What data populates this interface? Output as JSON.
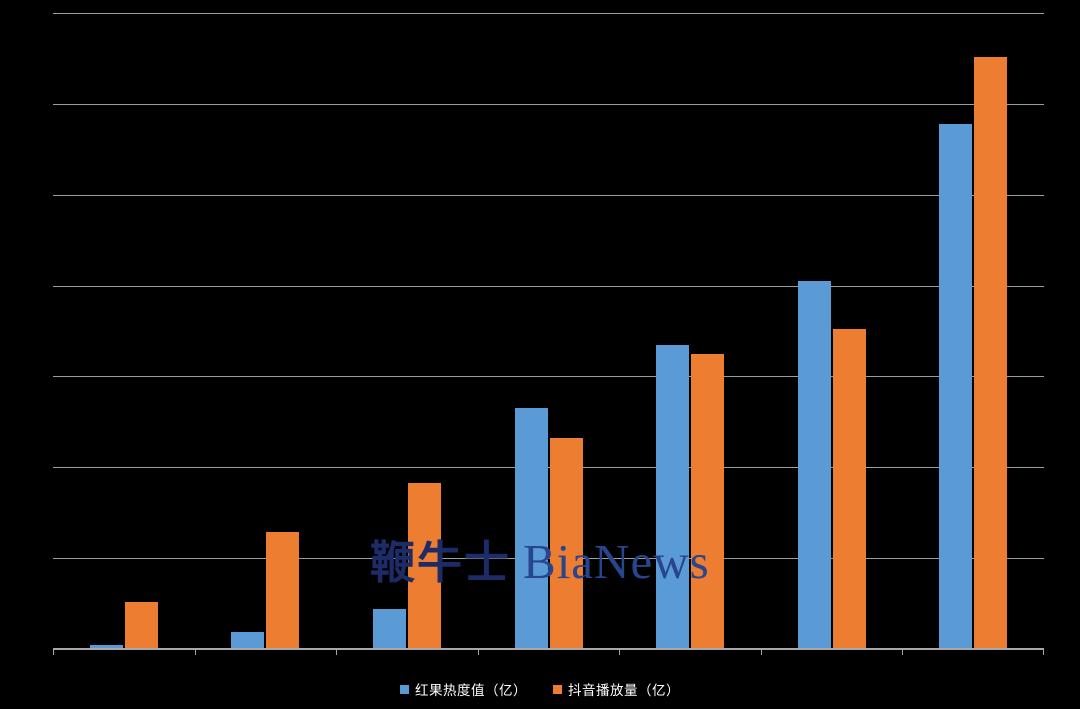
{
  "colors": {
    "background": "#000000",
    "series_blue": "#5B9BD5",
    "series_orange": "#ED7D31",
    "gridline": "#9d9d9d",
    "axis": "#a8a8a8",
    "watermark_cjk": "#1d2b67",
    "watermark_latin": "#28458e",
    "legend_text": "#ffffff"
  },
  "watermark": {
    "cjk": "鞭牛士",
    "latin": "BiaNews"
  },
  "legend": {
    "items": [
      {
        "id": "hongguo-heat",
        "label": "红果热度值（亿）",
        "color": "#5B9BD5"
      },
      {
        "id": "douyin-plays",
        "label": "抖音播放量（亿）",
        "color": "#ED7D31"
      }
    ]
  },
  "chart_data": {
    "type": "bar",
    "title": "",
    "xlabel": "",
    "ylabel": "",
    "categories": [
      "",
      "",
      "",
      "",
      "",
      "",
      ""
    ],
    "series": [
      {
        "id": "hongguo-heat",
        "name": "红果热度值（亿）",
        "color": "#5B9BD5",
        "values": [
          0.04,
          0.19,
          0.44,
          2.65,
          3.35,
          4.05,
          5.78
        ]
      },
      {
        "id": "douyin-plays",
        "name": "抖音播放量（亿）",
        "color": "#ED7D31",
        "values": [
          0.52,
          1.29,
          1.83,
          2.32,
          3.25,
          3.52,
          6.52
        ]
      }
    ],
    "ylim": [
      0,
      7
    ],
    "y_gridline_interval": 1,
    "y_tick_labels_visible": false,
    "x_tick_labels_visible": false,
    "grid": true,
    "legend_position": "bottom",
    "value_unit": "亿 (gridline units, axis unlabeled)"
  }
}
